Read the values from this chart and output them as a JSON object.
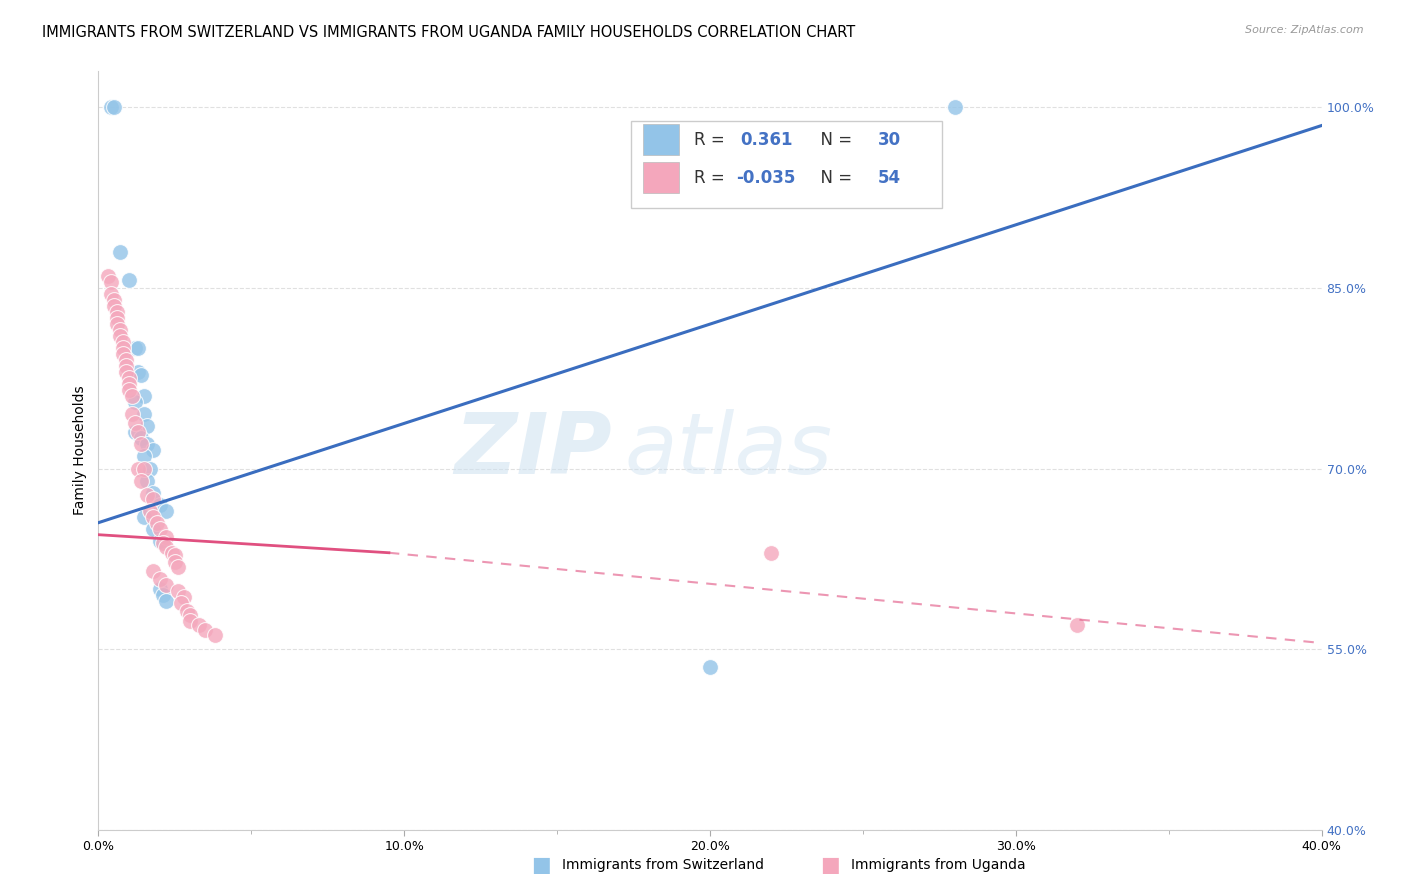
{
  "title": "IMMIGRANTS FROM SWITZERLAND VS IMMIGRANTS FROM UGANDA FAMILY HOUSEHOLDS CORRELATION CHART",
  "source": "Source: ZipAtlas.com",
  "ylabel": "Family Households",
  "xlim": [
    0.0,
    0.4
  ],
  "ylim": [
    0.4,
    1.03
  ],
  "xtick_labels": [
    "0.0%",
    "",
    "",
    "",
    "",
    "10.0%",
    "",
    "",
    "",
    "",
    "20.0%",
    "",
    "",
    "",
    "",
    "30.0%",
    "",
    "",
    "",
    "",
    "40.0%"
  ],
  "xtick_vals": [
    0.0,
    0.02,
    0.04,
    0.06,
    0.08,
    0.1,
    0.12,
    0.14,
    0.16,
    0.18,
    0.2,
    0.22,
    0.24,
    0.26,
    0.28,
    0.3,
    0.32,
    0.34,
    0.36,
    0.38,
    0.4
  ],
  "ytick_labels_right": [
    "40.0%",
    "55.0%",
    "70.0%",
    "85.0%",
    "100.0%"
  ],
  "ytick_vals": [
    0.4,
    0.55,
    0.7,
    0.85,
    1.0
  ],
  "scatter_blue": [
    [
      0.004,
      1.0
    ],
    [
      0.005,
      1.0
    ],
    [
      0.007,
      0.88
    ],
    [
      0.01,
      0.857
    ],
    [
      0.012,
      0.8
    ],
    [
      0.013,
      0.8
    ],
    [
      0.013,
      0.78
    ],
    [
      0.014,
      0.778
    ],
    [
      0.015,
      0.76
    ],
    [
      0.012,
      0.755
    ],
    [
      0.015,
      0.745
    ],
    [
      0.016,
      0.735
    ],
    [
      0.012,
      0.73
    ],
    [
      0.014,
      0.725
    ],
    [
      0.016,
      0.72
    ],
    [
      0.018,
      0.715
    ],
    [
      0.015,
      0.71
    ],
    [
      0.017,
      0.7
    ],
    [
      0.016,
      0.69
    ],
    [
      0.018,
      0.68
    ],
    [
      0.02,
      0.67
    ],
    [
      0.022,
      0.665
    ],
    [
      0.015,
      0.66
    ],
    [
      0.018,
      0.65
    ],
    [
      0.02,
      0.64
    ],
    [
      0.02,
      0.6
    ],
    [
      0.021,
      0.595
    ],
    [
      0.022,
      0.59
    ],
    [
      0.2,
      0.535
    ],
    [
      0.28,
      1.0
    ]
  ],
  "scatter_pink": [
    [
      0.003,
      0.86
    ],
    [
      0.004,
      0.855
    ],
    [
      0.004,
      0.845
    ],
    [
      0.005,
      0.84
    ],
    [
      0.005,
      0.835
    ],
    [
      0.006,
      0.83
    ],
    [
      0.006,
      0.825
    ],
    [
      0.006,
      0.82
    ],
    [
      0.007,
      0.815
    ],
    [
      0.007,
      0.81
    ],
    [
      0.008,
      0.805
    ],
    [
      0.008,
      0.8
    ],
    [
      0.008,
      0.795
    ],
    [
      0.009,
      0.79
    ],
    [
      0.009,
      0.785
    ],
    [
      0.009,
      0.78
    ],
    [
      0.01,
      0.775
    ],
    [
      0.01,
      0.77
    ],
    [
      0.01,
      0.765
    ],
    [
      0.011,
      0.76
    ],
    [
      0.011,
      0.745
    ],
    [
      0.012,
      0.738
    ],
    [
      0.013,
      0.73
    ],
    [
      0.014,
      0.72
    ],
    [
      0.013,
      0.7
    ],
    [
      0.015,
      0.7
    ],
    [
      0.014,
      0.69
    ],
    [
      0.016,
      0.678
    ],
    [
      0.018,
      0.675
    ],
    [
      0.017,
      0.665
    ],
    [
      0.018,
      0.66
    ],
    [
      0.019,
      0.655
    ],
    [
      0.02,
      0.65
    ],
    [
      0.022,
      0.643
    ],
    [
      0.021,
      0.638
    ],
    [
      0.022,
      0.635
    ],
    [
      0.024,
      0.63
    ],
    [
      0.025,
      0.628
    ],
    [
      0.025,
      0.622
    ],
    [
      0.026,
      0.618
    ],
    [
      0.018,
      0.615
    ],
    [
      0.02,
      0.608
    ],
    [
      0.022,
      0.603
    ],
    [
      0.026,
      0.598
    ],
    [
      0.028,
      0.593
    ],
    [
      0.027,
      0.588
    ],
    [
      0.029,
      0.582
    ],
    [
      0.03,
      0.578
    ],
    [
      0.03,
      0.573
    ],
    [
      0.033,
      0.57
    ],
    [
      0.035,
      0.566
    ],
    [
      0.038,
      0.562
    ],
    [
      0.22,
      0.63
    ],
    [
      0.32,
      0.57
    ]
  ],
  "blue_line": [
    [
      0.0,
      0.655
    ],
    [
      0.4,
      0.985
    ]
  ],
  "pink_line_solid": [
    [
      0.0,
      0.645
    ],
    [
      0.095,
      0.63
    ]
  ],
  "pink_line_dashed": [
    [
      0.095,
      0.63
    ],
    [
      0.4,
      0.555
    ]
  ],
  "blue_color": "#93c4e8",
  "pink_color": "#f4a7bc",
  "blue_line_color": "#3a6dbf",
  "pink_line_color": "#e05080",
  "watermark_zip": "ZIP",
  "watermark_atlas": "atlas",
  "background_color": "#ffffff",
  "grid_color": "#dddddd",
  "title_fontsize": 10.5,
  "axis_label_fontsize": 10,
  "tick_fontsize": 9,
  "legend_fontsize": 12
}
